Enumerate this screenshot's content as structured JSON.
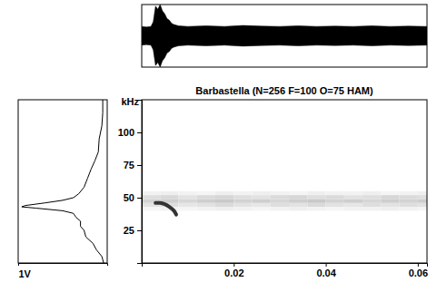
{
  "chart_data": [
    {
      "type": "area",
      "x": [
        0,
        0.001,
        0.002,
        0.0025,
        0.003,
        0.0035,
        0.004,
        0.0045,
        0.005,
        0.0055,
        0.006,
        0.0065,
        0.007,
        0.008,
        0.01,
        0.014,
        0.018,
        0.022,
        0.026,
        0.03,
        0.034,
        0.038,
        0.042,
        0.046,
        0.05,
        0.054,
        0.058,
        0.062
      ],
      "values": [
        0.3,
        0.28,
        0.3,
        0.45,
        0.95,
        0.85,
        1,
        0.8,
        0.7,
        0.55,
        0.5,
        0.4,
        0.36,
        0.32,
        0.3,
        0.32,
        0.3,
        0.33,
        0.31,
        0.3,
        0.32,
        0.3,
        0.31,
        0.3,
        0.32,
        0.3,
        0.31,
        0.3
      ],
      "xlim": [
        0,
        0.062
      ],
      "ylim": [
        -1,
        1
      ],
      "tick_labels": false,
      "color": "#000000"
    },
    {
      "type": "line",
      "x": [
        0.05,
        0.05,
        0.06,
        0.09,
        0.1,
        0.14,
        0.18,
        0.22,
        0.26,
        0.32,
        0.38,
        0.5,
        0.7,
        0.92,
        0.96,
        0.8,
        0.5,
        0.38,
        0.35,
        0.3,
        0.3,
        0.26,
        0.24,
        0.16,
        0.12,
        0.06,
        0.04
      ],
      "y": [
        125,
        115,
        105,
        95,
        85,
        78,
        72,
        65,
        58,
        53,
        50,
        48,
        46,
        44,
        43,
        42,
        40,
        38,
        35,
        32,
        28,
        25,
        20,
        15,
        10,
        5,
        0
      ],
      "xlim": [
        1,
        0
      ],
      "ylim": [
        0,
        125
      ],
      "xticks": [
        {
          "value": 1,
          "label": "1V"
        }
      ],
      "tick_labels": "x",
      "color": "#000000"
    },
    {
      "type": "heatmap",
      "title": "Barbastella (N=256 F=100 O=75 HAM)",
      "y_label": "kHz",
      "xlim": [
        0,
        0.062
      ],
      "ylim": [
        0,
        125
      ],
      "xticks": [
        0.02,
        0.04,
        0.06
      ],
      "yticks": [
        25,
        50,
        75,
        100
      ],
      "heatmap": {
        "x": [
          0,
          0.004,
          0.008,
          0.012,
          0.016,
          0.02,
          0.024,
          0.028,
          0.032,
          0.036,
          0.04,
          0.044,
          0.048,
          0.052,
          0.056,
          0.06,
          0.064
        ],
        "y": [
          40,
          43,
          46,
          49,
          52,
          55
        ],
        "values": [
          [
            0.08,
            0.1,
            0.08,
            0.1,
            0.12,
            0.1,
            0.08,
            0.1,
            0.12,
            0.1,
            0.08,
            0.1,
            0.1,
            0.12,
            0.1,
            0.08
          ],
          [
            0.2,
            0.22,
            0.18,
            0.2,
            0.24,
            0.2,
            0.18,
            0.22,
            0.2,
            0.24,
            0.2,
            0.18,
            0.22,
            0.2,
            0.22,
            0.2
          ],
          [
            0.28,
            0.3,
            0.26,
            0.3,
            0.32,
            0.28,
            0.3,
            0.26,
            0.3,
            0.32,
            0.28,
            0.3,
            0.26,
            0.3,
            0.28,
            0.3
          ],
          [
            0.22,
            0.25,
            0.2,
            0.24,
            0.26,
            0.22,
            0.2,
            0.24,
            0.26,
            0.22,
            0.24,
            0.2,
            0.22,
            0.26,
            0.24,
            0.22
          ],
          [
            0.1,
            0.12,
            0.1,
            0.08,
            0.12,
            0.1,
            0.12,
            0.1,
            0.08,
            0.12,
            0.1,
            0.1,
            0.12,
            0.08,
            0.1,
            0.12
          ]
        ]
      },
      "series": [
        {
          "type": "line",
          "x": [
            0.003,
            0.004,
            0.005,
            0.006,
            0.007,
            0.0075
          ],
          "values": [
            46,
            46,
            45,
            43,
            40,
            37
          ],
          "color": "#333333"
        }
      ]
    }
  ]
}
